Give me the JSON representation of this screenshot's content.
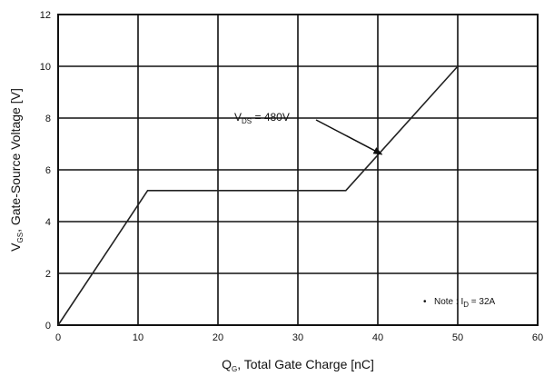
{
  "chart_data": {
    "type": "line",
    "xlabel": {
      "main": "Q",
      "sub": "G",
      "rest": ", Total Gate Charge [nC]"
    },
    "ylabel": {
      "main": "V",
      "sub": "GS",
      "rest": ", Gate-Source Voltage [V]"
    },
    "xlim": [
      0,
      60
    ],
    "ylim": [
      0,
      12
    ],
    "x_ticks": [
      0,
      10,
      20,
      30,
      40,
      50,
      60
    ],
    "y_ticks": [
      0,
      2,
      4,
      6,
      8,
      10,
      12
    ],
    "grid": true,
    "series": [
      {
        "x": [
          0,
          11.2,
          36,
          50
        ],
        "y": [
          0,
          5.2,
          5.2,
          10
        ]
      }
    ],
    "annotation": {
      "main": "V",
      "sub": "DS",
      "rest": " = 480V",
      "arrow_to": [
        40.5,
        6.6
      ]
    },
    "note": {
      "bullet": "•",
      "pre": "Note : I",
      "sub": "D",
      "rest": " = 32A"
    }
  }
}
